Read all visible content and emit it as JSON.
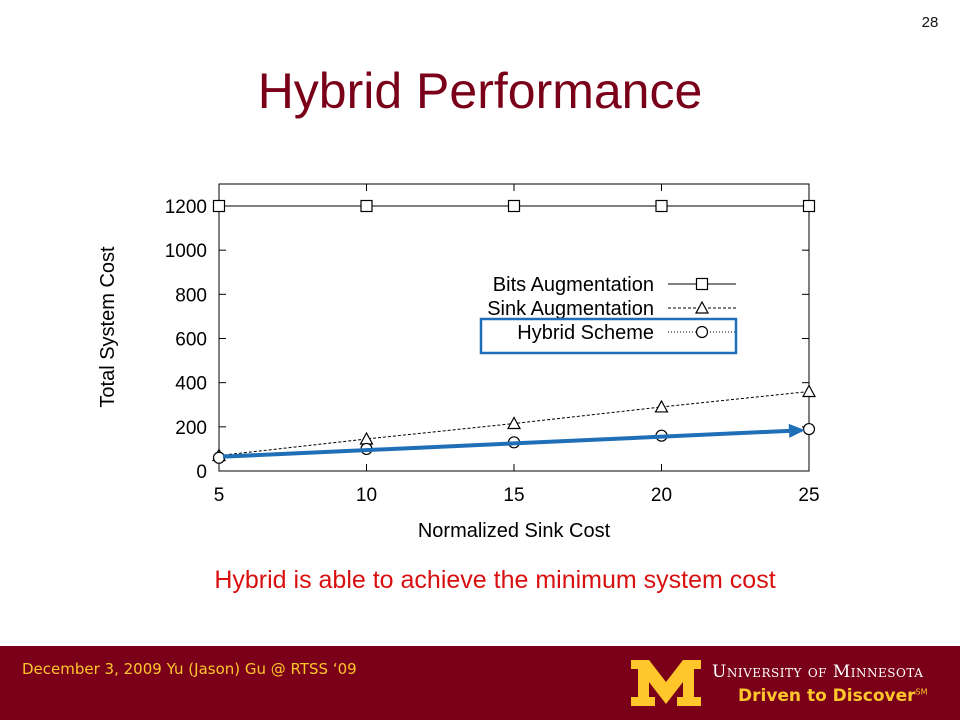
{
  "slide": {
    "number": "28",
    "title": "Hybrid Performance",
    "caption": "Hybrid is able to achieve the minimum system cost"
  },
  "chart_data": {
    "type": "line",
    "xlabel": "Normalized Sink Cost",
    "ylabel": "Total System Cost",
    "xlim": [
      5,
      25
    ],
    "ylim": [
      0,
      1300
    ],
    "xticks": [
      5,
      10,
      15,
      20,
      25
    ],
    "yticks": [
      0,
      200,
      400,
      600,
      800,
      1000,
      1200
    ],
    "grid": false,
    "legend_position": "center-right",
    "x": [
      5,
      10,
      15,
      20,
      25
    ],
    "series": [
      {
        "name": "Bits Augmentation",
        "marker": "square",
        "line": "solid",
        "values": [
          1200,
          1200,
          1200,
          1200,
          1200
        ]
      },
      {
        "name": "Sink Augmentation",
        "marker": "triangle",
        "line": "dashed",
        "values": [
          70,
          145,
          215,
          290,
          360
        ]
      },
      {
        "name": "Hybrid Scheme",
        "marker": "circle",
        "line": "dotted",
        "values": [
          60,
          100,
          130,
          160,
          190
        ]
      }
    ],
    "highlight_series": "Hybrid Scheme",
    "highlight_color": "#1f6fb8",
    "trend_arrow": {
      "from": [
        5,
        65
      ],
      "to": [
        25,
        185
      ],
      "color": "#1f6fb8"
    }
  },
  "footer": {
    "text": "December 3, 2009 Yu (Jason) Gu @ RTSS ‘09",
    "university": "University of Minnesota",
    "tagline": "Driven to Discover",
    "tagline_mark": "SM",
    "logo": "block-m-logo",
    "colors": {
      "maroon": "#7a0019",
      "gold": "#ffc72c"
    }
  }
}
